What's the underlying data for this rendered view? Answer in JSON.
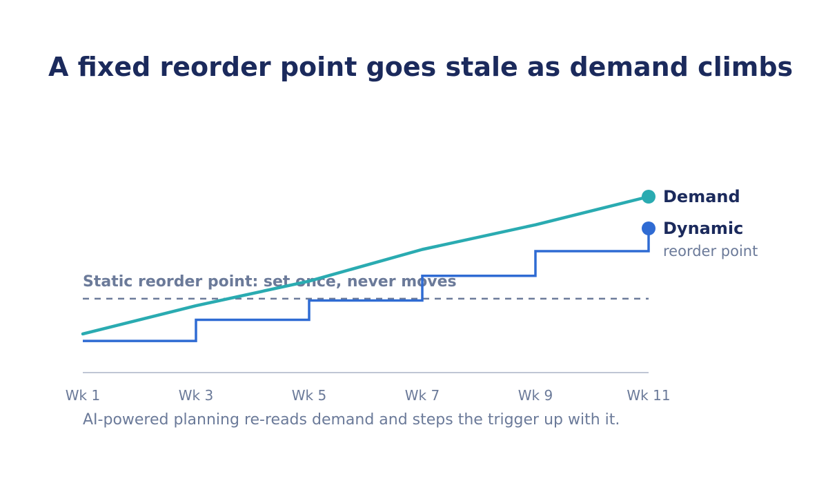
{
  "chart_data": {
    "type": "line",
    "title": "A fixed reorder point goes stale as demand climbs",
    "caption": "AI-powered planning re-reads demand and steps the trigger up with it.",
    "xlabel": "",
    "ylabel": "",
    "categories": [
      "Wk 1",
      "Wk 3",
      "Wk 5",
      "Wk 7",
      "Wk 9",
      "Wk 11"
    ],
    "x": [
      1,
      3,
      5,
      7,
      9,
      11
    ],
    "xlim": [
      1,
      11
    ],
    "ylim": [
      0,
      100
    ],
    "grid": false,
    "legend_placement": "right, at line ends",
    "series": [
      {
        "name": "Demand",
        "style": "line",
        "color": "#2aabb1",
        "x": [
          1,
          3,
          5,
          7,
          9,
          11
        ],
        "values": [
          22,
          38,
          52,
          70,
          84,
          100
        ]
      },
      {
        "name": "Dynamic",
        "label_sub": "reorder point",
        "style": "step",
        "color": "#2f6bd3",
        "x": [
          1,
          3,
          5,
          7,
          9,
          11
        ],
        "values": [
          18,
          30,
          41,
          55,
          69,
          82
        ]
      }
    ],
    "reference_lines": [
      {
        "label": "Static reorder point: set once, never moves",
        "value": 42,
        "style": "dashed",
        "color": "#6b7a99"
      }
    ]
  }
}
